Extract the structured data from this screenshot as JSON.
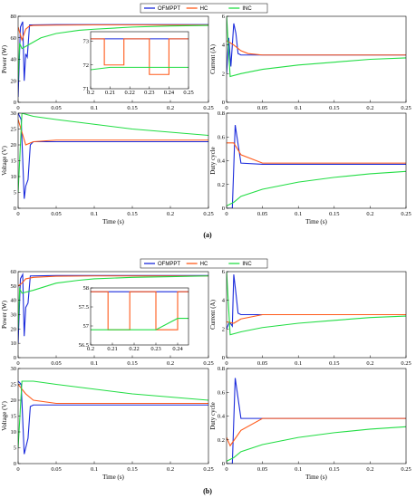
{
  "series_colors": {
    "OFMPPT": "#1a2adb",
    "HC": "#ff5a1a",
    "INC": "#22dd44"
  },
  "panel_labels": [
    "(a)",
    "(b)"
  ],
  "chart_data": [
    {
      "panel": "(a)",
      "position": "top-left",
      "type": "line",
      "xlabel": "",
      "ylabel": "Power (W)",
      "xlim": [
        0,
        0.25
      ],
      "ylim": [
        0,
        80
      ],
      "xticks": [
        "0",
        "0.05",
        "0.1",
        "0.15",
        "0.2",
        "0.25"
      ],
      "yticks": [
        "0",
        "20",
        "40",
        "60",
        "80"
      ],
      "legend": {
        "placement": "top",
        "entries": [
          "OFMPPT",
          "HC",
          "INC"
        ]
      },
      "series": [
        {
          "name": "OFMPPT",
          "x": [
            0,
            0.003,
            0.006,
            0.008,
            0.01,
            0.012,
            0.015,
            0.05,
            0.1,
            0.15,
            0.2,
            0.25
          ],
          "y": [
            5,
            70,
            75,
            20,
            45,
            42,
            72,
            72.3,
            72.3,
            72.3,
            72.3,
            72.3
          ]
        },
        {
          "name": "HC",
          "x": [
            0,
            0.005,
            0.01,
            0.015,
            0.02,
            0.05,
            0.1,
            0.15,
            0.2,
            0.25
          ],
          "y": [
            70,
            58,
            68,
            71,
            71.5,
            71.8,
            72,
            72,
            71.9,
            71.9
          ]
        },
        {
          "name": "INC",
          "x": [
            0,
            0.002,
            0.005,
            0.01,
            0.02,
            0.03,
            0.05,
            0.08,
            0.1,
            0.15,
            0.2,
            0.25
          ],
          "y": [
            20,
            55,
            50,
            52,
            56,
            60,
            64,
            67,
            68,
            70,
            71,
            71.5
          ]
        }
      ],
      "inset": {
        "xlim": [
          0.2,
          0.25
        ],
        "ylim": [
          71,
          73.4
        ],
        "xticks": [
          "0.2",
          "0.21",
          "0.22",
          "0.23",
          "0.24",
          "0.25"
        ],
        "yticks": [
          "71",
          "72",
          "73"
        ],
        "series": [
          {
            "name": "OFMPPT",
            "x": [
              0.2,
              0.25
            ],
            "y": [
              73.1,
              73.1
            ]
          },
          {
            "name": "HC",
            "x": [
              0.2,
              0.207,
              0.207,
              0.217,
              0.217,
              0.23,
              0.23,
              0.24,
              0.24,
              0.25
            ],
            "y": [
              73.1,
              73.1,
              72.0,
              72.0,
              73.1,
              73.1,
              71.6,
              71.6,
              73.1,
              73.1
            ]
          },
          {
            "name": "INC",
            "x": [
              0.2,
              0.21,
              0.22,
              0.23,
              0.24,
              0.25
            ],
            "y": [
              71.8,
              71.9,
              71.9,
              71.9,
              71.9,
              71.9
            ]
          }
        ]
      }
    },
    {
      "panel": "(a)",
      "position": "top-right",
      "type": "line",
      "xlabel": "",
      "ylabel": "Current (A)",
      "xlim": [
        0,
        0.25
      ],
      "ylim": [
        0,
        6
      ],
      "xticks": [
        "0",
        "0.05",
        "0.1",
        "0.15",
        "0.2",
        "0.25"
      ],
      "yticks": [
        "0",
        "2",
        "4",
        "6"
      ],
      "series": [
        {
          "name": "OFMPPT",
          "x": [
            0,
            0.003,
            0.006,
            0.01,
            0.013,
            0.016,
            0.02,
            0.05,
            0.1,
            0.15,
            0.2,
            0.25
          ],
          "y": [
            2,
            4.5,
            2.5,
            5.5,
            4.8,
            3.4,
            3.3,
            3.3,
            3.3,
            3.3,
            3.3,
            3.3
          ]
        },
        {
          "name": "HC",
          "x": [
            0,
            0.01,
            0.02,
            0.03,
            0.05,
            0.1,
            0.15,
            0.2,
            0.25
          ],
          "y": [
            4.3,
            4.0,
            3.6,
            3.4,
            3.3,
            3.3,
            3.3,
            3.3,
            3.3
          ]
        },
        {
          "name": "INC",
          "x": [
            0,
            0.005,
            0.02,
            0.05,
            0.1,
            0.15,
            0.2,
            0.25
          ],
          "y": [
            6,
            1.8,
            2.0,
            2.3,
            2.6,
            2.8,
            3.0,
            3.1
          ]
        }
      ]
    },
    {
      "panel": "(a)",
      "position": "bottom-left",
      "type": "line",
      "xlabel": "Time (s)",
      "ylabel": "Voltage (V)",
      "xlim": [
        0,
        0.25
      ],
      "ylim": [
        0,
        30
      ],
      "xticks": [
        "0",
        "0.05",
        "0.1",
        "0.15",
        "0.2",
        "0.25"
      ],
      "yticks": [
        "0",
        "5",
        "10",
        "15",
        "20",
        "25",
        "30"
      ],
      "series": [
        {
          "name": "OFMPPT",
          "x": [
            0,
            0.004,
            0.008,
            0.01,
            0.013,
            0.016,
            0.02,
            0.05,
            0.1,
            0.15,
            0.2,
            0.25
          ],
          "y": [
            30,
            28,
            3,
            7,
            9,
            20,
            21,
            21,
            21,
            21,
            21,
            21
          ]
        },
        {
          "name": "HC",
          "x": [
            0,
            0.01,
            0.02,
            0.05,
            0.1,
            0.15,
            0.2,
            0.25
          ],
          "y": [
            28,
            20,
            21,
            21.5,
            21.5,
            21.5,
            21.5,
            21.5
          ]
        },
        {
          "name": "INC",
          "x": [
            0,
            0.005,
            0.02,
            0.05,
            0.1,
            0.15,
            0.2,
            0.25
          ],
          "y": [
            5,
            30,
            29,
            28,
            26.5,
            25,
            24,
            23
          ]
        }
      ]
    },
    {
      "panel": "(a)",
      "position": "bottom-right",
      "type": "line",
      "xlabel": "Time (s)",
      "ylabel": "Duty cycle",
      "xlim": [
        0,
        0.25
      ],
      "ylim": [
        0,
        0.8
      ],
      "xticks": [
        "0",
        "0.05",
        "0.1",
        "0.15",
        "0.2",
        "0.25"
      ],
      "yticks": [
        "0",
        "0.2",
        "0.4",
        "0.6",
        "0.8"
      ],
      "series": [
        {
          "name": "OFMPPT",
          "x": [
            0,
            0.008,
            0.012,
            0.02,
            0.05,
            0.1,
            0.15,
            0.2,
            0.25
          ],
          "y": [
            0,
            0,
            0.7,
            0.38,
            0.37,
            0.37,
            0.37,
            0.37,
            0.37
          ]
        },
        {
          "name": "HC",
          "x": [
            0,
            0.01,
            0.02,
            0.05,
            0.1,
            0.15,
            0.2,
            0.25
          ],
          "y": [
            0.55,
            0.55,
            0.45,
            0.38,
            0.38,
            0.38,
            0.38,
            0.38
          ]
        },
        {
          "name": "INC",
          "x": [
            0,
            0.01,
            0.02,
            0.05,
            0.1,
            0.15,
            0.2,
            0.25
          ],
          "y": [
            0.02,
            0.05,
            0.1,
            0.16,
            0.22,
            0.26,
            0.29,
            0.31
          ]
        }
      ]
    },
    {
      "panel": "(b)",
      "position": "top-left",
      "type": "line",
      "xlabel": "",
      "ylabel": "Power (W)",
      "xlim": [
        0,
        0.25
      ],
      "ylim": [
        0,
        60
      ],
      "xticks": [
        "0",
        "0.05",
        "0.1",
        "0.15",
        "0.2",
        "0.25"
      ],
      "yticks": [
        "0",
        "10",
        "20",
        "30",
        "40",
        "50",
        "60"
      ],
      "legend": {
        "placement": "top",
        "entries": [
          "OFMPPT",
          "HC",
          "INC"
        ]
      },
      "series": [
        {
          "name": "OFMPPT",
          "x": [
            0,
            0.003,
            0.006,
            0.008,
            0.01,
            0.013,
            0.016,
            0.05,
            0.1,
            0.15,
            0.2,
            0.25
          ],
          "y": [
            10,
            55,
            58,
            15,
            35,
            38,
            57,
            57.3,
            57.3,
            57.3,
            57.3,
            57.3
          ]
        },
        {
          "name": "HC",
          "x": [
            0,
            0.005,
            0.01,
            0.02,
            0.05,
            0.1,
            0.15,
            0.2,
            0.25
          ],
          "y": [
            50,
            52,
            55,
            56,
            56.8,
            57,
            57,
            57,
            57
          ]
        },
        {
          "name": "INC",
          "x": [
            0,
            0.002,
            0.005,
            0.02,
            0.05,
            0.08,
            0.1,
            0.15,
            0.2,
            0.25
          ],
          "y": [
            20,
            48,
            45,
            47,
            52,
            54,
            55,
            56,
            56.5,
            57
          ]
        }
      ],
      "inset": {
        "xlim": [
          0.2,
          0.245
        ],
        "ylim": [
          56.5,
          58
        ],
        "xticks": [
          "0.2",
          "0.21",
          "0.22",
          "0.23",
          "0.24"
        ],
        "yticks": [
          "56.5",
          "57",
          "57.5",
          "58"
        ],
        "series": [
          {
            "name": "OFMPPT",
            "x": [
              0.2,
              0.245
            ],
            "y": [
              57.9,
              57.9
            ]
          },
          {
            "name": "HC",
            "x": [
              0.2,
              0.208,
              0.208,
              0.218,
              0.218,
              0.23,
              0.23,
              0.24,
              0.24,
              0.245
            ],
            "y": [
              57.9,
              57.9,
              56.9,
              56.9,
              57.9,
              57.9,
              56.9,
              56.9,
              57.9,
              57.9
            ]
          },
          {
            "name": "INC",
            "x": [
              0.2,
              0.21,
              0.22,
              0.23,
              0.24,
              0.245
            ],
            "y": [
              56.9,
              56.9,
              56.9,
              56.9,
              57.2,
              57.2
            ]
          }
        ]
      }
    },
    {
      "panel": "(b)",
      "position": "top-right",
      "type": "line",
      "xlabel": "",
      "ylabel": "Current (A)",
      "xlim": [
        0,
        0.25
      ],
      "ylim": [
        0,
        6
      ],
      "xticks": [
        "0",
        "0.05",
        "0.1",
        "0.15",
        "0.2",
        "0.25"
      ],
      "yticks": [
        "0",
        "2",
        "4",
        "6"
      ],
      "series": [
        {
          "name": "OFMPPT",
          "x": [
            0,
            0.004,
            0.008,
            0.01,
            0.013,
            0.016,
            0.02,
            0.05,
            0.1,
            0.15,
            0.2,
            0.25
          ],
          "y": [
            2,
            2.5,
            2.2,
            5.8,
            4.5,
            3.1,
            3.0,
            3.0,
            3.0,
            3.0,
            3.0,
            3.0
          ]
        },
        {
          "name": "HC",
          "x": [
            0,
            0.01,
            0.02,
            0.05,
            0.1,
            0.15,
            0.2,
            0.25
          ],
          "y": [
            2.5,
            2.4,
            2.7,
            3.0,
            3.0,
            3.0,
            3.0,
            3.0
          ]
        },
        {
          "name": "INC",
          "x": [
            0,
            0.005,
            0.02,
            0.05,
            0.1,
            0.15,
            0.2,
            0.25
          ],
          "y": [
            6,
            1.6,
            1.8,
            2.1,
            2.4,
            2.6,
            2.8,
            2.9
          ]
        }
      ]
    },
    {
      "panel": "(b)",
      "position": "bottom-left",
      "type": "line",
      "xlabel": "Time (s)",
      "ylabel": "Voltage (V)",
      "xlim": [
        0,
        0.25
      ],
      "ylim": [
        0,
        30
      ],
      "xticks": [
        "0",
        "0.05",
        "0.1",
        "0.15",
        "0.2",
        "0.25"
      ],
      "yticks": [
        "0",
        "5",
        "10",
        "15",
        "20",
        "25",
        "30"
      ],
      "series": [
        {
          "name": "OFMPPT",
          "x": [
            0,
            0.004,
            0.008,
            0.01,
            0.013,
            0.016,
            0.02,
            0.05,
            0.1,
            0.15,
            0.2,
            0.25
          ],
          "y": [
            26,
            25,
            3,
            5,
            8,
            18,
            18.5,
            18.5,
            18.5,
            18.5,
            18.5,
            18.5
          ]
        },
        {
          "name": "HC",
          "x": [
            0,
            0.01,
            0.02,
            0.05,
            0.1,
            0.15,
            0.2,
            0.25
          ],
          "y": [
            25,
            22,
            20,
            19,
            19,
            19,
            19,
            19
          ]
        },
        {
          "name": "INC",
          "x": [
            0,
            0.005,
            0.02,
            0.05,
            0.1,
            0.15,
            0.2,
            0.25
          ],
          "y": [
            5,
            26,
            26,
            25,
            23.5,
            22,
            21,
            20
          ]
        }
      ]
    },
    {
      "panel": "(b)",
      "position": "bottom-right",
      "type": "line",
      "xlabel": "Time (s)",
      "ylabel": "Duty cycle",
      "xlim": [
        0,
        0.25
      ],
      "ylim": [
        0,
        0.8
      ],
      "xticks": [
        "0",
        "0.05",
        "0.1",
        "0.15",
        "0.2",
        "0.25"
      ],
      "yticks": [
        "0",
        "0.2",
        "0.4",
        "0.6",
        "0.8"
      ],
      "series": [
        {
          "name": "OFMPPT",
          "x": [
            0,
            0.008,
            0.012,
            0.02,
            0.05,
            0.1,
            0.15,
            0.2,
            0.25
          ],
          "y": [
            0,
            0,
            0.72,
            0.38,
            0.38,
            0.38,
            0.38,
            0.38,
            0.38
          ]
        },
        {
          "name": "HC",
          "x": [
            0,
            0.005,
            0.02,
            0.05,
            0.1,
            0.15,
            0.2,
            0.25
          ],
          "y": [
            0.22,
            0.15,
            0.28,
            0.38,
            0.38,
            0.38,
            0.38,
            0.38
          ]
        },
        {
          "name": "INC",
          "x": [
            0,
            0.01,
            0.02,
            0.05,
            0.1,
            0.15,
            0.2,
            0.25
          ],
          "y": [
            0.02,
            0.05,
            0.1,
            0.16,
            0.22,
            0.26,
            0.29,
            0.31
          ]
        }
      ]
    }
  ]
}
